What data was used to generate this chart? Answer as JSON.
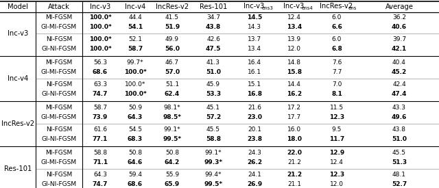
{
  "col_headers_main": [
    "Model",
    "Attack",
    "Inc-v3",
    "Inc-v4",
    "IncRes-v2",
    "Res-101",
    "Inc-v3",
    "Inc-v3",
    "IncRes-v2",
    "Average"
  ],
  "col_headers_sub": [
    "",
    "",
    "",
    "",
    "",
    "",
    "ens3",
    "ens4",
    "ens",
    ""
  ],
  "rows": [
    {
      "model": "Inc-v3",
      "attack": "MI-FGSM",
      "vals": [
        "100.0*",
        "44.4",
        "41.5",
        "34.7",
        "14.5",
        "12.4",
        "6.0",
        "36.2"
      ],
      "bold": [
        true,
        false,
        false,
        false,
        true,
        false,
        false,
        false
      ]
    },
    {
      "model": "Inc-v3",
      "attack": "GI-MI-FGSM",
      "vals": [
        "100.0*",
        "54.1",
        "51.9",
        "43.8",
        "14.3",
        "13.4",
        "6.6",
        "40.6"
      ],
      "bold": [
        true,
        true,
        true,
        true,
        false,
        true,
        true,
        true
      ]
    },
    {
      "model": "Inc-v3",
      "attack": "NI-FGSM",
      "vals": [
        "100.0*",
        "52.1",
        "49.9",
        "42.6",
        "13.7",
        "13.9",
        "6.0",
        "39.7"
      ],
      "bold": [
        true,
        false,
        false,
        false,
        false,
        false,
        false,
        false
      ]
    },
    {
      "model": "Inc-v3",
      "attack": "GI-NI-FGSM",
      "vals": [
        "100.0*",
        "58.7",
        "56.0",
        "47.5",
        "13.4",
        "12.0",
        "6.8",
        "42.1"
      ],
      "bold": [
        true,
        true,
        true,
        true,
        false,
        false,
        true,
        true
      ]
    },
    {
      "model": "Inc-v4",
      "attack": "MI-FGSM",
      "vals": [
        "56.3",
        "99.7*",
        "46.7",
        "41.3",
        "16.4",
        "14.8",
        "7.6",
        "40.4"
      ],
      "bold": [
        false,
        false,
        false,
        false,
        false,
        false,
        false,
        false
      ]
    },
    {
      "model": "Inc-v4",
      "attack": "GI-MI-FGSM",
      "vals": [
        "68.6",
        "100.0*",
        "57.0",
        "51.0",
        "16.1",
        "15.8",
        "7.7",
        "45.2"
      ],
      "bold": [
        true,
        true,
        true,
        true,
        false,
        true,
        false,
        true
      ]
    },
    {
      "model": "Inc-v4",
      "attack": "NI-FGSM",
      "vals": [
        "63.3",
        "100.0*",
        "51.1",
        "45.9",
        "15.1",
        "14.4",
        "7.0",
        "42.4"
      ],
      "bold": [
        false,
        false,
        false,
        false,
        false,
        false,
        false,
        false
      ]
    },
    {
      "model": "Inc-v4",
      "attack": "GI-NI-FGSM",
      "vals": [
        "74.7",
        "100.0*",
        "62.4",
        "53.3",
        "16.8",
        "16.2",
        "8.1",
        "47.4"
      ],
      "bold": [
        true,
        true,
        true,
        true,
        true,
        true,
        true,
        true
      ]
    },
    {
      "model": "IncRes-v2",
      "attack": "MI-FGSM",
      "vals": [
        "58.7",
        "50.9",
        "98.1*",
        "45.1",
        "21.6",
        "17.2",
        "11.5",
        "43.3"
      ],
      "bold": [
        false,
        false,
        false,
        false,
        false,
        false,
        false,
        false
      ]
    },
    {
      "model": "IncRes-v2",
      "attack": "GI-MI-FGSM",
      "vals": [
        "73.9",
        "64.3",
        "98.5*",
        "57.2",
        "23.0",
        "17.7",
        "12.3",
        "49.6"
      ],
      "bold": [
        true,
        true,
        true,
        true,
        true,
        false,
        true,
        true
      ]
    },
    {
      "model": "IncRes-v2",
      "attack": "NI-FGSM",
      "vals": [
        "61.6",
        "54.5",
        "99.1*",
        "45.5",
        "20.1",
        "16.0",
        "9.5",
        "43.8"
      ],
      "bold": [
        false,
        false,
        false,
        false,
        false,
        false,
        false,
        false
      ]
    },
    {
      "model": "IncRes-v2",
      "attack": "GI-NI-FGSM",
      "vals": [
        "77.1",
        "68.3",
        "99.5*",
        "58.8",
        "23.8",
        "18.0",
        "11.7",
        "51.0"
      ],
      "bold": [
        true,
        true,
        true,
        true,
        true,
        true,
        true,
        true
      ]
    },
    {
      "model": "Res-101",
      "attack": "MI-FGSM",
      "vals": [
        "58.8",
        "50.8",
        "50.8",
        "99.1*",
        "24.3",
        "22.0",
        "12.9",
        "45.5"
      ],
      "bold": [
        false,
        false,
        false,
        false,
        false,
        true,
        true,
        false
      ]
    },
    {
      "model": "Res-101",
      "attack": "GI-MI-FGSM",
      "vals": [
        "71.1",
        "64.6",
        "64.2",
        "99.3*",
        "26.2",
        "21.2",
        "12.4",
        "51.3"
      ],
      "bold": [
        true,
        true,
        true,
        true,
        true,
        false,
        false,
        true
      ]
    },
    {
      "model": "Res-101",
      "attack": "NI-FGSM",
      "vals": [
        "64.3",
        "59.4",
        "55.9",
        "99.4*",
        "24.1",
        "21.2",
        "12.3",
        "48.1"
      ],
      "bold": [
        false,
        false,
        false,
        false,
        false,
        true,
        true,
        false
      ]
    },
    {
      "model": "Res-101",
      "attack": "GI-NI-FGSM",
      "vals": [
        "74.7",
        "68.6",
        "65.9",
        "99.5*",
        "26.9",
        "21.1",
        "12.0",
        "52.7"
      ],
      "bold": [
        true,
        true,
        true,
        true,
        true,
        false,
        false,
        true
      ]
    }
  ],
  "model_groups": [
    {
      "name": "Inc-v3",
      "rows": [
        0,
        1,
        2,
        3
      ]
    },
    {
      "name": "Inc-v4",
      "rows": [
        4,
        5,
        6,
        7
      ]
    },
    {
      "name": "IncRes-v2",
      "rows": [
        8,
        9,
        10,
        11
      ]
    },
    {
      "name": "Res-101",
      "rows": [
        12,
        13,
        14,
        15
      ]
    }
  ],
  "figsize": [
    6.4,
    2.75
  ],
  "dpi": 100,
  "bg_color": "#ffffff",
  "font_size_header": 7.2,
  "font_size_data": 6.5,
  "font_size_sub": 5.0
}
